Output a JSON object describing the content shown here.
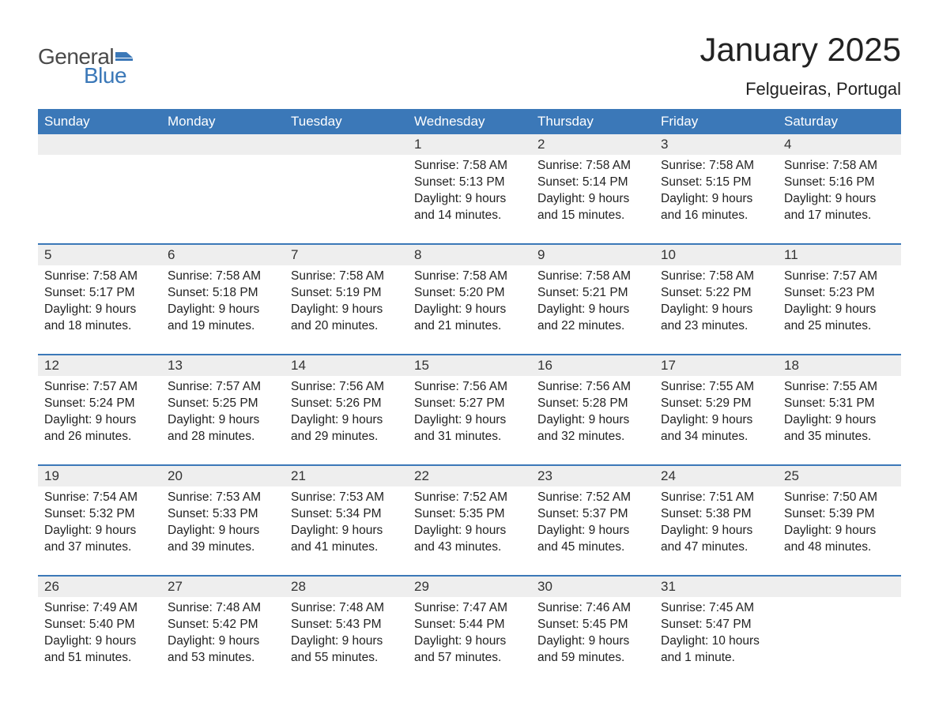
{
  "logo": {
    "general": "General",
    "blue": "Blue",
    "flag_color": "#3b78b8"
  },
  "title": "January 2025",
  "location": "Felgueiras, Portugal",
  "colors": {
    "header_bg": "#3b78b8",
    "header_text": "#ffffff",
    "daynum_bg": "#eeeeee",
    "text": "#222222",
    "week_border": "#3b78b8",
    "page_bg": "#ffffff"
  },
  "weekdays": [
    "Sunday",
    "Monday",
    "Tuesday",
    "Wednesday",
    "Thursday",
    "Friday",
    "Saturday"
  ],
  "weeks": [
    [
      null,
      null,
      null,
      {
        "n": "1",
        "sunrise": "Sunrise: 7:58 AM",
        "sunset": "Sunset: 5:13 PM",
        "d1": "Daylight: 9 hours",
        "d2": "and 14 minutes."
      },
      {
        "n": "2",
        "sunrise": "Sunrise: 7:58 AM",
        "sunset": "Sunset: 5:14 PM",
        "d1": "Daylight: 9 hours",
        "d2": "and 15 minutes."
      },
      {
        "n": "3",
        "sunrise": "Sunrise: 7:58 AM",
        "sunset": "Sunset: 5:15 PM",
        "d1": "Daylight: 9 hours",
        "d2": "and 16 minutes."
      },
      {
        "n": "4",
        "sunrise": "Sunrise: 7:58 AM",
        "sunset": "Sunset: 5:16 PM",
        "d1": "Daylight: 9 hours",
        "d2": "and 17 minutes."
      }
    ],
    [
      {
        "n": "5",
        "sunrise": "Sunrise: 7:58 AM",
        "sunset": "Sunset: 5:17 PM",
        "d1": "Daylight: 9 hours",
        "d2": "and 18 minutes."
      },
      {
        "n": "6",
        "sunrise": "Sunrise: 7:58 AM",
        "sunset": "Sunset: 5:18 PM",
        "d1": "Daylight: 9 hours",
        "d2": "and 19 minutes."
      },
      {
        "n": "7",
        "sunrise": "Sunrise: 7:58 AM",
        "sunset": "Sunset: 5:19 PM",
        "d1": "Daylight: 9 hours",
        "d2": "and 20 minutes."
      },
      {
        "n": "8",
        "sunrise": "Sunrise: 7:58 AM",
        "sunset": "Sunset: 5:20 PM",
        "d1": "Daylight: 9 hours",
        "d2": "and 21 minutes."
      },
      {
        "n": "9",
        "sunrise": "Sunrise: 7:58 AM",
        "sunset": "Sunset: 5:21 PM",
        "d1": "Daylight: 9 hours",
        "d2": "and 22 minutes."
      },
      {
        "n": "10",
        "sunrise": "Sunrise: 7:58 AM",
        "sunset": "Sunset: 5:22 PM",
        "d1": "Daylight: 9 hours",
        "d2": "and 23 minutes."
      },
      {
        "n": "11",
        "sunrise": "Sunrise: 7:57 AM",
        "sunset": "Sunset: 5:23 PM",
        "d1": "Daylight: 9 hours",
        "d2": "and 25 minutes."
      }
    ],
    [
      {
        "n": "12",
        "sunrise": "Sunrise: 7:57 AM",
        "sunset": "Sunset: 5:24 PM",
        "d1": "Daylight: 9 hours",
        "d2": "and 26 minutes."
      },
      {
        "n": "13",
        "sunrise": "Sunrise: 7:57 AM",
        "sunset": "Sunset: 5:25 PM",
        "d1": "Daylight: 9 hours",
        "d2": "and 28 minutes."
      },
      {
        "n": "14",
        "sunrise": "Sunrise: 7:56 AM",
        "sunset": "Sunset: 5:26 PM",
        "d1": "Daylight: 9 hours",
        "d2": "and 29 minutes."
      },
      {
        "n": "15",
        "sunrise": "Sunrise: 7:56 AM",
        "sunset": "Sunset: 5:27 PM",
        "d1": "Daylight: 9 hours",
        "d2": "and 31 minutes."
      },
      {
        "n": "16",
        "sunrise": "Sunrise: 7:56 AM",
        "sunset": "Sunset: 5:28 PM",
        "d1": "Daylight: 9 hours",
        "d2": "and 32 minutes."
      },
      {
        "n": "17",
        "sunrise": "Sunrise: 7:55 AM",
        "sunset": "Sunset: 5:29 PM",
        "d1": "Daylight: 9 hours",
        "d2": "and 34 minutes."
      },
      {
        "n": "18",
        "sunrise": "Sunrise: 7:55 AM",
        "sunset": "Sunset: 5:31 PM",
        "d1": "Daylight: 9 hours",
        "d2": "and 35 minutes."
      }
    ],
    [
      {
        "n": "19",
        "sunrise": "Sunrise: 7:54 AM",
        "sunset": "Sunset: 5:32 PM",
        "d1": "Daylight: 9 hours",
        "d2": "and 37 minutes."
      },
      {
        "n": "20",
        "sunrise": "Sunrise: 7:53 AM",
        "sunset": "Sunset: 5:33 PM",
        "d1": "Daylight: 9 hours",
        "d2": "and 39 minutes."
      },
      {
        "n": "21",
        "sunrise": "Sunrise: 7:53 AM",
        "sunset": "Sunset: 5:34 PM",
        "d1": "Daylight: 9 hours",
        "d2": "and 41 minutes."
      },
      {
        "n": "22",
        "sunrise": "Sunrise: 7:52 AM",
        "sunset": "Sunset: 5:35 PM",
        "d1": "Daylight: 9 hours",
        "d2": "and 43 minutes."
      },
      {
        "n": "23",
        "sunrise": "Sunrise: 7:52 AM",
        "sunset": "Sunset: 5:37 PM",
        "d1": "Daylight: 9 hours",
        "d2": "and 45 minutes."
      },
      {
        "n": "24",
        "sunrise": "Sunrise: 7:51 AM",
        "sunset": "Sunset: 5:38 PM",
        "d1": "Daylight: 9 hours",
        "d2": "and 47 minutes."
      },
      {
        "n": "25",
        "sunrise": "Sunrise: 7:50 AM",
        "sunset": "Sunset: 5:39 PM",
        "d1": "Daylight: 9 hours",
        "d2": "and 48 minutes."
      }
    ],
    [
      {
        "n": "26",
        "sunrise": "Sunrise: 7:49 AM",
        "sunset": "Sunset: 5:40 PM",
        "d1": "Daylight: 9 hours",
        "d2": "and 51 minutes."
      },
      {
        "n": "27",
        "sunrise": "Sunrise: 7:48 AM",
        "sunset": "Sunset: 5:42 PM",
        "d1": "Daylight: 9 hours",
        "d2": "and 53 minutes."
      },
      {
        "n": "28",
        "sunrise": "Sunrise: 7:48 AM",
        "sunset": "Sunset: 5:43 PM",
        "d1": "Daylight: 9 hours",
        "d2": "and 55 minutes."
      },
      {
        "n": "29",
        "sunrise": "Sunrise: 7:47 AM",
        "sunset": "Sunset: 5:44 PM",
        "d1": "Daylight: 9 hours",
        "d2": "and 57 minutes."
      },
      {
        "n": "30",
        "sunrise": "Sunrise: 7:46 AM",
        "sunset": "Sunset: 5:45 PM",
        "d1": "Daylight: 9 hours",
        "d2": "and 59 minutes."
      },
      {
        "n": "31",
        "sunrise": "Sunrise: 7:45 AM",
        "sunset": "Sunset: 5:47 PM",
        "d1": "Daylight: 10 hours",
        "d2": "and 1 minute."
      },
      null
    ]
  ]
}
